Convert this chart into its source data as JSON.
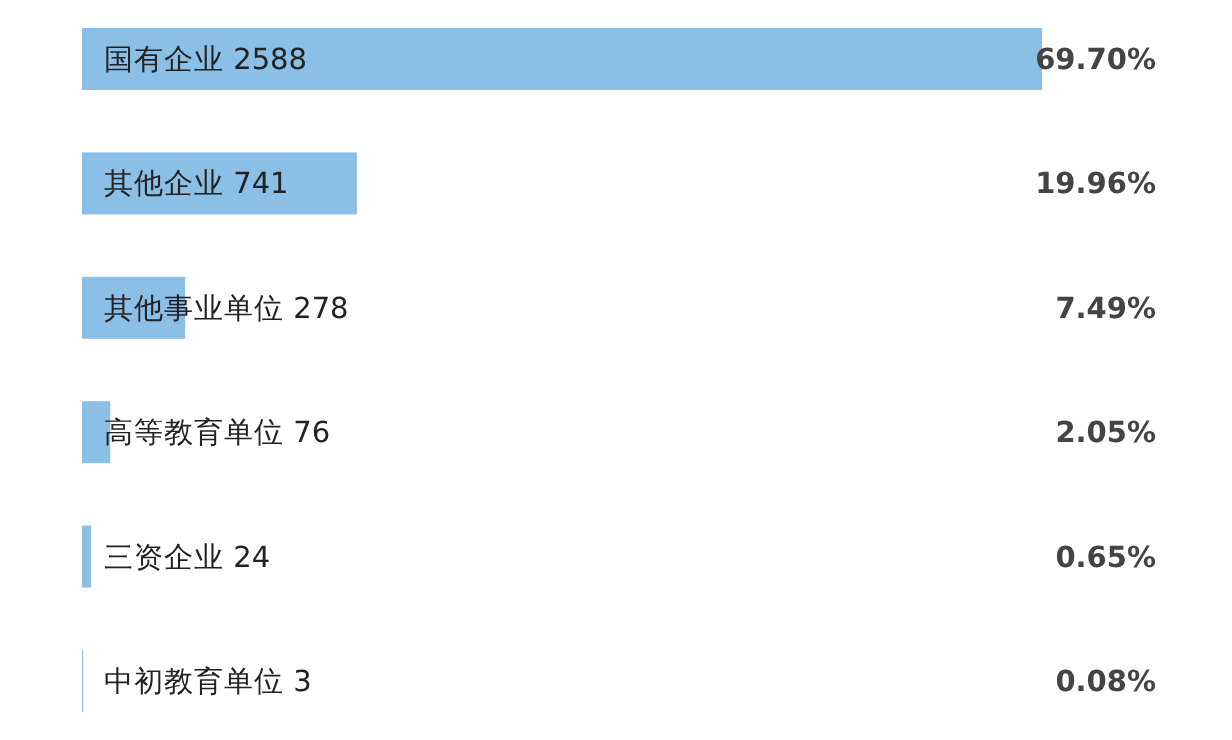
{
  "chart_data": {
    "type": "bar",
    "orientation": "horizontal",
    "categories": [
      "国有企业 2588",
      "其他企业 741",
      "其他事业单位 278",
      "高等教育单位 76",
      "三资企业 24",
      "中初教育单位 3"
    ],
    "values": [
      69.7,
      19.96,
      7.49,
      2.05,
      0.65,
      0.08
    ],
    "value_labels": [
      "69.70%",
      "19.96%",
      "7.49%",
      "2.05%",
      "0.65%",
      "0.08%"
    ],
    "color": "#8bbfe6"
  }
}
